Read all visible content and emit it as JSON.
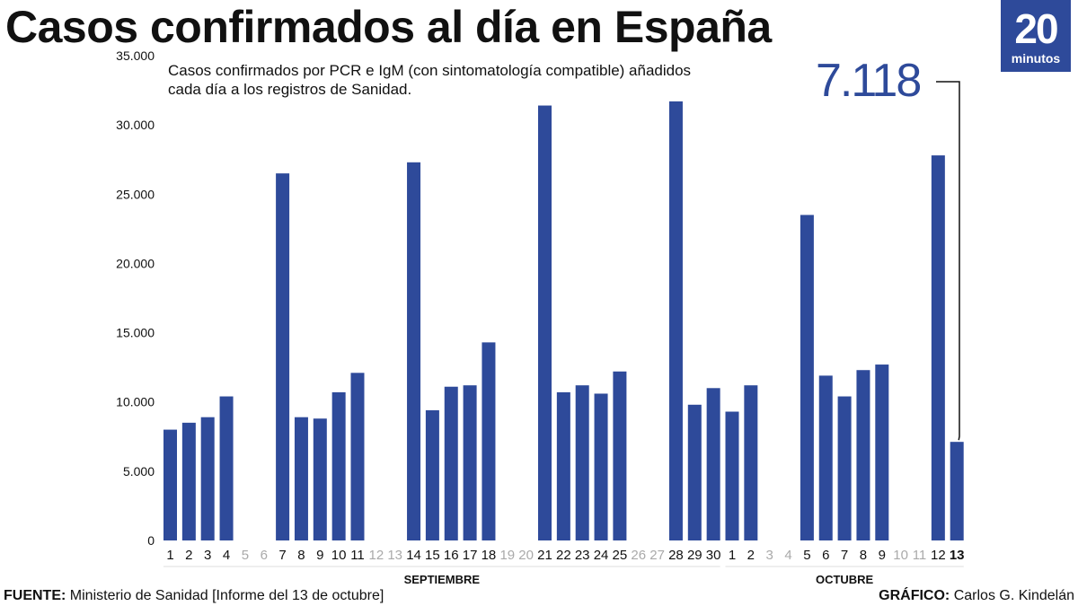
{
  "title": "Casos confirmados al día en España",
  "logo": {
    "number": "20",
    "word": "minutos"
  },
  "subtitle": "Casos confirmados por PCR e IgM (con sintomatología compatible) añadidos cada día a los registros de Sanidad.",
  "highlight_value": "7.118",
  "footer": {
    "source_label": "FUENTE:",
    "source_text": "Ministerio de Sanidad [Informe del 13 de octubre]",
    "credit_label": "GRÁFICO:",
    "credit_text": "Carlos G. Kindelán"
  },
  "colors": {
    "bar": "#2e4a9a",
    "accent": "#2e4a9a",
    "muted_label": "#aaaaaa"
  },
  "chart_data": {
    "type": "bar",
    "title": "Casos confirmados al día en España",
    "xlabel": "",
    "ylabel": "",
    "ylim": [
      0,
      35000
    ],
    "yticks": [
      {
        "value": 0,
        "label": "0"
      },
      {
        "value": 5000,
        "label": "5.000"
      },
      {
        "value": 10000,
        "label": "10.000"
      },
      {
        "value": 15000,
        "label": "15.000"
      },
      {
        "value": 20000,
        "label": "20.000"
      },
      {
        "value": 25000,
        "label": "25.000"
      },
      {
        "value": 30000,
        "label": "30.000"
      },
      {
        "value": 35000,
        "label": "35.000"
      }
    ],
    "months": [
      {
        "label": "SEPTIEMBRE",
        "first_index": 0,
        "last_index": 29
      },
      {
        "label": "OCTUBRE",
        "first_index": 30,
        "last_index": 42
      }
    ],
    "categories": [
      "1",
      "2",
      "3",
      "4",
      "5",
      "6",
      "7",
      "8",
      "9",
      "10",
      "11",
      "12",
      "13",
      "14",
      "15",
      "16",
      "17",
      "18",
      "19",
      "20",
      "21",
      "22",
      "23",
      "24",
      "25",
      "26",
      "27",
      "28",
      "29",
      "30",
      "1",
      "2",
      "3",
      "4",
      "5",
      "6",
      "7",
      "8",
      "9",
      "10",
      "11",
      "12",
      "13"
    ],
    "values": [
      8000,
      8500,
      8900,
      10400,
      null,
      null,
      26500,
      8900,
      8800,
      10700,
      12100,
      null,
      null,
      27300,
      9400,
      11100,
      11200,
      14300,
      null,
      null,
      31400,
      10700,
      11200,
      10600,
      12200,
      null,
      null,
      31700,
      9800,
      11000,
      9300,
      11200,
      null,
      null,
      23500,
      11900,
      10400,
      12300,
      12700,
      null,
      null,
      27800,
      7118
    ],
    "highlighted_index": 42
  }
}
